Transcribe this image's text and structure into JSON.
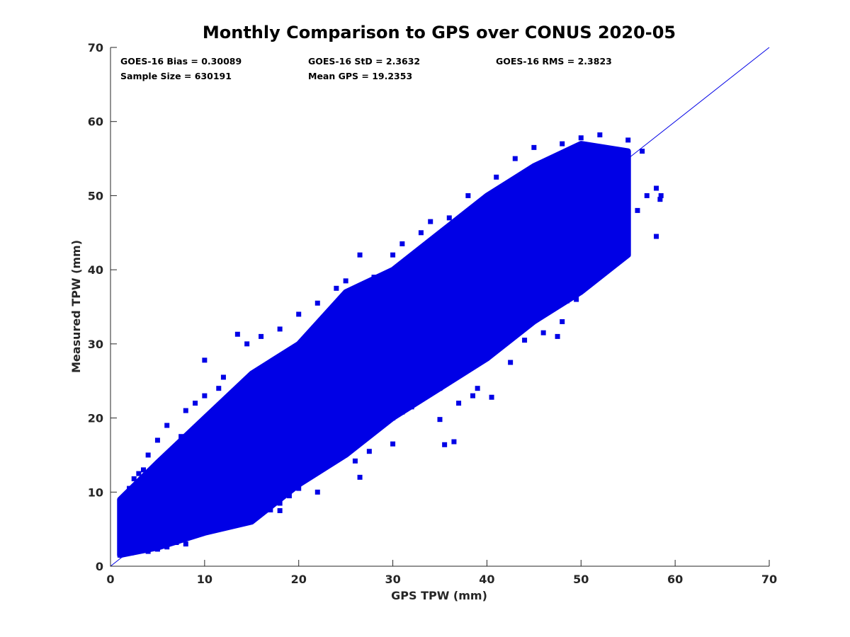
{
  "chart_data": {
    "type": "scatter",
    "title": "Monthly Comparison to GPS over CONUS 2020-05",
    "xlabel": "GPS TPW (mm)",
    "ylabel": "Measured TPW (mm)",
    "xlim": [
      0,
      70
    ],
    "ylim": [
      0,
      70
    ],
    "xticks": [
      "0",
      "10",
      "20",
      "30",
      "40",
      "50",
      "60",
      "70"
    ],
    "yticks": [
      "0",
      "10",
      "20",
      "30",
      "40",
      "50",
      "60",
      "70"
    ],
    "grid": false,
    "marker_color": "#0000e6",
    "line_color": "#0000e6",
    "reference_line": {
      "x": [
        0,
        70
      ],
      "y": [
        0,
        70
      ]
    },
    "stats": [
      {
        "label": "GOES-16 Bias = 0.30089"
      },
      {
        "label": "GOES-16 StD = 2.3632"
      },
      {
        "label": "GOES-16 RMS = 2.3823"
      },
      {
        "label": "Sample Size = 630191"
      },
      {
        "label": "Mean GPS = 19.2353"
      }
    ],
    "dense_band": {
      "lower": [
        [
          1.0,
          1.5
        ],
        [
          5,
          2.5
        ],
        [
          10,
          4.5
        ],
        [
          15,
          6
        ],
        [
          20,
          11
        ],
        [
          25,
          15
        ],
        [
          30,
          20
        ],
        [
          35,
          24
        ],
        [
          40,
          28
        ],
        [
          45,
          33
        ],
        [
          50,
          37
        ],
        [
          55,
          42
        ]
      ],
      "upper": [
        [
          1.0,
          9
        ],
        [
          5,
          14
        ],
        [
          10,
          20
        ],
        [
          15,
          26
        ],
        [
          20,
          30
        ],
        [
          25,
          37
        ],
        [
          30,
          40
        ],
        [
          35,
          45
        ],
        [
          40,
          50
        ],
        [
          45,
          54
        ],
        [
          50,
          57
        ],
        [
          55,
          56
        ]
      ]
    },
    "points": [
      [
        1.0,
        1.5
      ],
      [
        1.5,
        2.0
      ],
      [
        2.2,
        1.8
      ],
      [
        3.0,
        2.2
      ],
      [
        1.2,
        4.5
      ],
      [
        1.3,
        6.5
      ],
      [
        1.5,
        8.5
      ],
      [
        2.0,
        10.5
      ],
      [
        2.5,
        11.8
      ],
      [
        3.5,
        13.0
      ],
      [
        4.0,
        2.0
      ],
      [
        5.0,
        2.3
      ],
      [
        6.0,
        2.6
      ],
      [
        7.0,
        3.2
      ],
      [
        8.0,
        3.8
      ],
      [
        9.0,
        4.3
      ],
      [
        10.0,
        4.6
      ],
      [
        11.0,
        5.3
      ],
      [
        12.0,
        5.8
      ],
      [
        13.0,
        6.3
      ],
      [
        14.0,
        6.8
      ],
      [
        15.0,
        6.6
      ],
      [
        16.0,
        7.2
      ],
      [
        17.0,
        7.6
      ],
      [
        18.0,
        8.5
      ],
      [
        19.0,
        9.5
      ],
      [
        20.0,
        10.5
      ],
      [
        21.0,
        12.0
      ],
      [
        22.0,
        13.5
      ],
      [
        23.0,
        14.5
      ],
      [
        24.0,
        14.8
      ],
      [
        25.0,
        16.0
      ],
      [
        26.0,
        16.5
      ],
      [
        27.0,
        17.5
      ],
      [
        28.0,
        18.5
      ],
      [
        29.0,
        19.2
      ],
      [
        30.0,
        20.0
      ],
      [
        31.0,
        20.8
      ],
      [
        32.0,
        21.5
      ],
      [
        33.0,
        22.5
      ],
      [
        34.0,
        23.5
      ],
      [
        35.0,
        24.0
      ],
      [
        36.0,
        25.0
      ],
      [
        37.0,
        26.0
      ],
      [
        38.0,
        27.0
      ],
      [
        39.0,
        28.0
      ],
      [
        40.0,
        28.5
      ],
      [
        41.0,
        30.0
      ],
      [
        42.0,
        31.0
      ],
      [
        43.0,
        32.0
      ],
      [
        44.0,
        33.5
      ],
      [
        45.0,
        34.0
      ],
      [
        46.0,
        35.0
      ],
      [
        47.0,
        36.5
      ],
      [
        48.0,
        37.0
      ],
      [
        49.0,
        38.0
      ],
      [
        50.0,
        38.5
      ],
      [
        51.0,
        39.5
      ],
      [
        52.0,
        41.0
      ],
      [
        53.0,
        42.5
      ],
      [
        54.0,
        44.0
      ],
      [
        55.0,
        46.0
      ],
      [
        56.0,
        48.0
      ],
      [
        57.0,
        50.0
      ],
      [
        58.0,
        51.0
      ],
      [
        58.5,
        50.0
      ],
      [
        58.4,
        49.5
      ],
      [
        58.0,
        44.5
      ],
      [
        56.5,
        56.0
      ],
      [
        55.0,
        57.5
      ],
      [
        52.0,
        58.2
      ],
      [
        50.0,
        57.8
      ],
      [
        48.0,
        57.0
      ],
      [
        45.0,
        56.5
      ],
      [
        43.0,
        55.0
      ],
      [
        41.0,
        52.5
      ],
      [
        38.0,
        50.0
      ],
      [
        36.0,
        47.0
      ],
      [
        34.0,
        46.5
      ],
      [
        33.0,
        45.0
      ],
      [
        31.0,
        43.5
      ],
      [
        30.0,
        42.0
      ],
      [
        28.0,
        39.0
      ],
      [
        26.5,
        42.0
      ],
      [
        25.0,
        38.5
      ],
      [
        24.0,
        37.5
      ],
      [
        22.0,
        35.5
      ],
      [
        20.0,
        34.0
      ],
      [
        18.0,
        32.0
      ],
      [
        16.0,
        31.0
      ],
      [
        14.5,
        30.0
      ],
      [
        13.5,
        31.3
      ],
      [
        10.0,
        27.8
      ],
      [
        12.0,
        25.5
      ],
      [
        10.0,
        23.0
      ],
      [
        9.0,
        22.0
      ],
      [
        8.0,
        21.0
      ],
      [
        6.0,
        19.0
      ],
      [
        5.0,
        17.0
      ],
      [
        4.0,
        15.0
      ],
      [
        3.0,
        12.5
      ],
      [
        2.5,
        10.0
      ],
      [
        17.0,
        18.5
      ],
      [
        20.0,
        22.0
      ],
      [
        22.5,
        26.0
      ],
      [
        27.0,
        30.0
      ],
      [
        32.0,
        35.0
      ],
      [
        37.0,
        40.0
      ],
      [
        42.0,
        45.0
      ],
      [
        47.0,
        49.0
      ],
      [
        35.5,
        16.4
      ],
      [
        36.5,
        16.8
      ],
      [
        35.0,
        19.8
      ],
      [
        37.0,
        22.0
      ],
      [
        38.5,
        23.0
      ],
      [
        39.0,
        24.0
      ],
      [
        40.5,
        22.8
      ],
      [
        42.5,
        27.5
      ],
      [
        44.0,
        30.5
      ],
      [
        46.0,
        31.5
      ],
      [
        47.5,
        31.0
      ],
      [
        48.0,
        33.0
      ],
      [
        26.5,
        12.0
      ],
      [
        26.0,
        14.2
      ],
      [
        27.5,
        15.5
      ],
      [
        30.0,
        16.5
      ],
      [
        22.0,
        10.0
      ],
      [
        18.0,
        7.5
      ],
      [
        12.5,
        5.5
      ],
      [
        8.0,
        3.0
      ],
      [
        44.5,
        36.0
      ],
      [
        48.5,
        35.8
      ],
      [
        49.5,
        36.0
      ],
      [
        43.0,
        34.5
      ],
      [
        45.5,
        36.5
      ],
      [
        51.0,
        45.0
      ],
      [
        53.0,
        48.5
      ],
      [
        54.5,
        52.0
      ],
      [
        52.5,
        54.0
      ],
      [
        50.5,
        55.5
      ],
      [
        47.5,
        54.5
      ],
      [
        44.0,
        51.0
      ],
      [
        41.5,
        50.5
      ],
      [
        39.5,
        48.0
      ],
      [
        37.5,
        45.0
      ],
      [
        35.5,
        43.5
      ],
      [
        33.5,
        41.0
      ],
      [
        29.5,
        38.5
      ],
      [
        27.0,
        36.0
      ],
      [
        23.5,
        33.0
      ],
      [
        21.0,
        30.5
      ],
      [
        19.0,
        28.5
      ],
      [
        15.5,
        26.0
      ],
      [
        11.5,
        24.0
      ],
      [
        7.5,
        17.5
      ],
      [
        6.5,
        15.5
      ],
      [
        5.5,
        12.0
      ],
      [
        3.8,
        9.0
      ],
      [
        2.8,
        6.0
      ],
      [
        2.0,
        3.5
      ]
    ]
  }
}
